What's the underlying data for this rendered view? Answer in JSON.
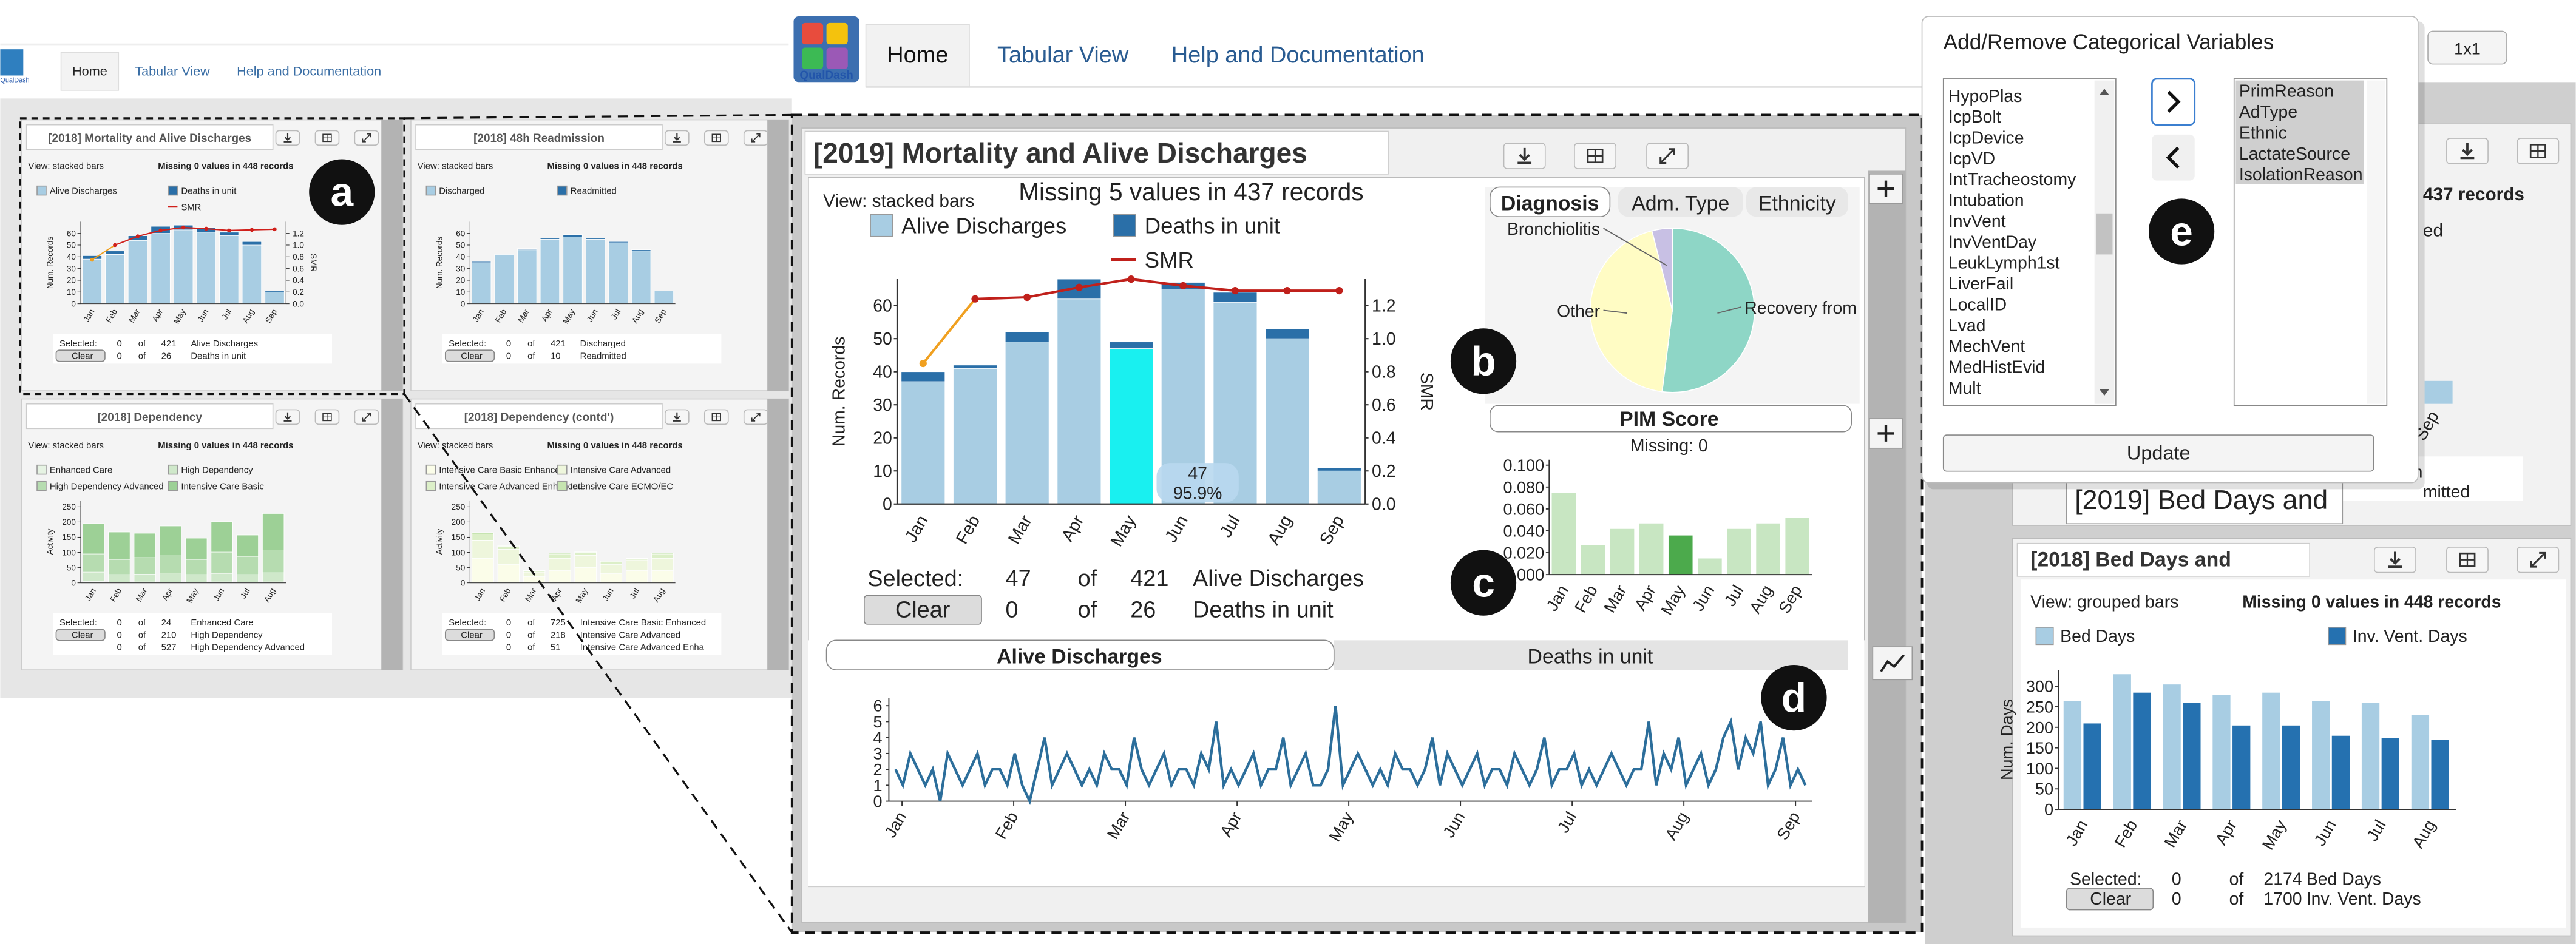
{
  "top_bar": {
    "logo": "QualDash",
    "tabs": [
      "Home",
      "Tabular View",
      "Help and Documentation"
    ]
  },
  "background_window": {
    "logo": "QualDash",
    "tabs": [
      "Home",
      "Tabular View",
      "Help and Documentation"
    ],
    "panels": [
      {
        "title": "[2018] Mortality and Alive Discharges",
        "view": "View: stacked bars",
        "missing": "Missing 0 values in 448 records",
        "chart": {
          "type": "bar",
          "mode": "stacked",
          "categories": [
            "Jan",
            "Feb",
            "Mar",
            "Apr",
            "May",
            "Jun",
            "Jul",
            "Aug",
            "Sep"
          ],
          "ylabel": "Num. Records",
          "y2label": "SMR",
          "ylim": [
            0,
            70
          ],
          "yticks": [
            0,
            10,
            20,
            30,
            40,
            50,
            60
          ],
          "y2lim": [
            0,
            1.4
          ],
          "y2ticks": [
            {
              "value": 0,
              "label": "0.0"
            },
            {
              "value": 0.2,
              "label": "0.2"
            },
            {
              "value": 0.4,
              "label": "0.4"
            },
            {
              "value": 0.6,
              "label": "0.6"
            },
            {
              "value": 0.8,
              "label": "0.8"
            },
            {
              "value": 1,
              "label": "1.0"
            },
            {
              "value": 1.2,
              "label": "1.2"
            }
          ],
          "series": [
            {
              "name": "Alive Discharges",
              "color": "#a8cde3",
              "values": [
                38,
                42,
                54,
                60,
                63,
                61,
                58,
                50,
                10
              ]
            },
            {
              "name": "Deaths in unit",
              "color": "#2a6fa8",
              "values": [
                3,
                3,
                4,
                6,
                4,
                4,
                3,
                3,
                1
              ]
            },
            {
              "name": "SMR",
              "color": "#d0201b",
              "start_color": "#f0a020",
              "axis": "y2",
              "values": [
                0.75,
                1.0,
                1.15,
                1.25,
                1.3,
                1.28,
                1.25,
                1.26,
                1.27
              ]
            }
          ]
        },
        "selection": {
          "selected_label": "Selected:",
          "clear": "Clear",
          "of": "of",
          "rows": [
            {
              "count": 0,
              "total": 421,
              "name": "Alive Discharges"
            },
            {
              "count": 0,
              "total": 26,
              "name": "Deaths in unit"
            }
          ]
        }
      },
      {
        "title": "[2018] 48h Readmission",
        "view": "View: stacked bars",
        "missing": "Missing 0 values in 448 records",
        "chart": {
          "type": "bar",
          "mode": "stacked",
          "categories": [
            "Jan",
            "Feb",
            "Mar",
            "Apr",
            "May",
            "Jun",
            "Jul",
            "Aug",
            "Sep"
          ],
          "ylabel": "Num. Records",
          "ylim": [
            0,
            70
          ],
          "yticks": [
            0,
            10,
            20,
            30,
            40,
            50,
            60
          ],
          "series": [
            {
              "name": "Discharged",
              "color": "#a8cde3",
              "values": [
                35,
                42,
                46,
                55,
                57,
                55,
                52,
                45,
                11
              ]
            },
            {
              "name": "Readmitted",
              "color": "#2a6fa8",
              "values": [
                1,
                0,
                1,
                1,
                2,
                1,
                1,
                1,
                0
              ]
            }
          ]
        },
        "selection": {
          "selected_label": "Selected:",
          "clear": "Clear",
          "of": "of",
          "rows": [
            {
              "count": 0,
              "total": 421,
              "name": "Discharged"
            },
            {
              "count": 0,
              "total": 10,
              "name": "Readmitted"
            }
          ]
        }
      },
      {
        "title": "[2018] Dependency",
        "view": "View: stacked bars",
        "missing": "Missing 0 values in 448 records",
        "chart": {
          "type": "bar",
          "mode": "stacked",
          "categories": [
            "Jan",
            "Feb",
            "Mar",
            "Apr",
            "May",
            "Jun",
            "Jul",
            "Aug"
          ],
          "ylabel": "Activity",
          "ylim": [
            0,
            270
          ],
          "yticks": [
            0,
            50,
            100,
            150,
            200,
            250
          ],
          "series": [
            {
              "name": "Enhanced Care",
              "color": "#e6f3e3",
              "values": [
                5,
                2,
                3,
                2,
                2,
                3,
                2,
                3
              ]
            },
            {
              "name": "High Dependency",
              "color": "#cfe8ca",
              "values": [
                30,
                25,
                25,
                30,
                25,
                28,
                25,
                30
              ]
            },
            {
              "name": "High Dependency Advanced",
              "color": "#b6dcb0",
              "values": [
                60,
                50,
                55,
                60,
                50,
                70,
                60,
                75
              ]
            },
            {
              "name": "Intensive Care Basic",
              "color": "#9dd096",
              "values": [
                100,
                90,
                80,
                95,
                70,
                100,
                70,
                120
              ]
            }
          ]
        },
        "selection": {
          "selected_label": "Selected:",
          "clear": "Clear",
          "of": "of",
          "rows": [
            {
              "count": 0,
              "total": 24,
              "name": "Enhanced Care"
            },
            {
              "count": 0,
              "total": 210,
              "name": "High Dependency"
            },
            {
              "count": 0,
              "total": 527,
              "name": "High Dependency Advanced"
            }
          ]
        }
      },
      {
        "title": "[2018] Dependency (contd')",
        "view": "View: stacked bars",
        "missing": "Missing 0 values in 448 records",
        "chart": {
          "type": "bar",
          "mode": "stacked",
          "categories": [
            "Jan",
            "Feb",
            "Mar",
            "Apr",
            "May",
            "Jun",
            "Jul",
            "Aug"
          ],
          "ylabel": "Activity",
          "ylim": [
            0,
            270
          ],
          "yticks": [
            0,
            50,
            100,
            150,
            200,
            250
          ],
          "series": [
            {
              "name": "Intensive Care Basic Enhance",
              "color": "#fbfde9",
              "values": [
                80,
                60,
                20,
                40,
                50,
                30,
                40,
                40
              ]
            },
            {
              "name": "Intensive Care Advanced",
              "color": "#eef6dc",
              "values": [
                60,
                50,
                15,
                40,
                40,
                30,
                35,
                40
              ]
            },
            {
              "name": "Intensive Care Advanced Enhanced",
              "color": "#dcefc8",
              "values": [
                20,
                10,
                5,
                15,
                10,
                10,
                5,
                15
              ]
            },
            {
              "name": "Intensive Care ECMO/EC",
              "color": "#c6e4b0",
              "values": [
                5,
                2,
                1,
                3,
                2,
                2,
                1,
                3
              ]
            }
          ]
        },
        "selection": {
          "selected_label": "Selected:",
          "clear": "Clear",
          "of": "of",
          "rows": [
            {
              "count": 0,
              "total": 725,
              "name": "Intensive Care Basic Enhanced"
            },
            {
              "count": 0,
              "total": 218,
              "name": "Intensive Care Advanced"
            },
            {
              "count": 0,
              "total": 51,
              "name": "Intensive Care Advanced Enha"
            }
          ]
        }
      }
    ]
  },
  "main_panel": {
    "title": "[2019] Mortality and Alive Discharges",
    "view": "View: stacked bars",
    "missing": "Missing 5 values in 437 records",
    "chart": {
      "type": "bar",
      "mode": "stacked",
      "categories": [
        "Jan",
        "Feb",
        "Mar",
        "Apr",
        "May",
        "Jun",
        "Jul",
        "Aug",
        "Sep"
      ],
      "ylabel": "Num. Records",
      "y2label": "SMR",
      "ylim": [
        0,
        68
      ],
      "yticks": [
        0,
        10,
        20,
        30,
        40,
        50,
        60
      ],
      "y2lim": [
        0,
        1.36
      ],
      "y2ticks": [
        {
          "value": 0,
          "label": "0.0"
        },
        {
          "value": 0.2,
          "label": "0.2"
        },
        {
          "value": 0.4,
          "label": "0.4"
        },
        {
          "value": 0.6,
          "label": "0.6"
        },
        {
          "value": 0.8,
          "label": "0.8"
        },
        {
          "value": 1,
          "label": "1.0"
        },
        {
          "value": 1.2,
          "label": "1.2"
        }
      ],
      "highlight_category": "May",
      "highlight_color": "#19f0f0",
      "series": [
        {
          "name": "Alive Discharges",
          "color": "#a8cde3",
          "values": [
            37,
            41,
            49,
            62,
            47,
            65,
            61,
            50,
            10
          ]
        },
        {
          "name": "Deaths in unit",
          "color": "#2a6fa8",
          "values": [
            3,
            1,
            3,
            6,
            2,
            2,
            3,
            3,
            1
          ]
        },
        {
          "name": "SMR",
          "color": "#c0201b",
          "start_color": "#f0a020",
          "axis": "y2",
          "values": [
            0.85,
            1.24,
            1.25,
            1.31,
            1.36,
            1.32,
            1.29,
            1.29,
            1.29
          ]
        }
      ],
      "tooltip": [
        "47",
        "95.9%"
      ]
    },
    "selection": {
      "selected_label": "Selected:",
      "clear": "Clear",
      "of": "of",
      "rows": [
        {
          "count": 47,
          "total": 421,
          "name": "Alive Discharges"
        },
        {
          "count": 0,
          "total": 26,
          "name": "Deaths in unit"
        }
      ]
    },
    "pie": {
      "type": "pie",
      "tabs": [
        "Diagnosis",
        "Adm. Type",
        "Ethnicity"
      ],
      "categories": [
        "Recovery from",
        "Other",
        "Bronchiolitis"
      ],
      "values": [
        52,
        44,
        4
      ],
      "colors": [
        "#8ed6c6",
        "#fffcc4",
        "#c8c0e4"
      ]
    },
    "pim": {
      "type": "bar",
      "title": "PIM Score",
      "missing": "Missing: 0",
      "mode": "stacked",
      "categories": [
        "Jan",
        "Feb",
        "Mar",
        "Apr",
        "May",
        "Jun",
        "Jul",
        "Aug",
        "Sep"
      ],
      "ylim": [
        0,
        0.105
      ],
      "yticks": [
        {
          "value": 0,
          "label": "0.000"
        },
        {
          "value": 0.02,
          "label": "0.020"
        },
        {
          "value": 0.04,
          "label": "0.040"
        },
        {
          "value": 0.06,
          "label": "0.060"
        },
        {
          "value": 0.08,
          "label": "0.080"
        },
        {
          "value": 0.1,
          "label": "0.100"
        }
      ],
      "highlight_category": "May",
      "highlight_color": "#4caa4c",
      "series": [
        {
          "name": "PIM Score",
          "color": "#c8e6c2",
          "values": [
            0.075,
            0.027,
            0.042,
            0.047,
            0.036,
            0.015,
            0.042,
            0.047,
            0.052
          ]
        }
      ]
    },
    "timeline": {
      "type": "line",
      "tabs": [
        "Alive Discharges",
        "Deaths in unit"
      ],
      "categories": [
        "Jan",
        "Feb",
        "Mar",
        "Apr",
        "May",
        "Jun",
        "Jul",
        "Aug",
        "Sep"
      ],
      "ylim": [
        0,
        6.5
      ],
      "yticks": [
        0,
        1,
        2,
        3,
        4,
        5,
        6
      ],
      "color": "#2c6e9b",
      "values": [
        2,
        1,
        3,
        2,
        1,
        2,
        0,
        3,
        2,
        1,
        2,
        3,
        1,
        2,
        2,
        1,
        3,
        1,
        0,
        2,
        4,
        1,
        2,
        3,
        2,
        1,
        2,
        1,
        3,
        2,
        2,
        1,
        4,
        2,
        1,
        2,
        3,
        1,
        2,
        2,
        1,
        3,
        2,
        5,
        1,
        2,
        1,
        2,
        3,
        1,
        2,
        2,
        4,
        1,
        2,
        3,
        1,
        1,
        2,
        6,
        1,
        2,
        3,
        2,
        1,
        2,
        1,
        3,
        2,
        2,
        1,
        2,
        4,
        1,
        3,
        2,
        1,
        2,
        3,
        1,
        2,
        2,
        1,
        3,
        2,
        1,
        2,
        4,
        1,
        2,
        2,
        3,
        1,
        2,
        1,
        2,
        3,
        2,
        1,
        2,
        2,
        5,
        1,
        3,
        2,
        4,
        1,
        2,
        3,
        1,
        2,
        4,
        5,
        2,
        4,
        3,
        5,
        1,
        2,
        4,
        1,
        2,
        1
      ]
    }
  },
  "popup": {
    "title": "Add/Remove Categorical Variables",
    "available": [
      "HypoPlas",
      "IcpBolt",
      "IcpDevice",
      "IcpVD",
      "IntTracheostomy",
      "Intubation",
      "InvVent",
      "InvVentDay",
      "LeukLymph1st",
      "LiverFail",
      "LocalID",
      "Lvad",
      "MechVent",
      "MedHistEvid",
      "Mult"
    ],
    "selected": [
      "PrimReason",
      "AdType",
      "Ethnic",
      "LactateSource",
      "IsolationReason"
    ],
    "update": "Update"
  },
  "behind_popup": {
    "layout_button": "1x1",
    "records": "437 records",
    "fragments": [
      "ed",
      "n",
      "mitted",
      "Sep"
    ],
    "tooltip": "[2019] Bed Days and"
  },
  "bed_days_panel": {
    "title": "[2018] Bed Days and",
    "view": "View: grouped bars",
    "missing": "Missing 0 values in 448 records",
    "chart": {
      "type": "bar",
      "mode": "grouped",
      "categories": [
        "Jan",
        "Feb",
        "Mar",
        "Apr",
        "May",
        "Jun",
        "Jul",
        "Aug"
      ],
      "ylabel": "Num. Days",
      "ylim": [
        0,
        340
      ],
      "yticks": [
        0,
        50,
        100,
        150,
        200,
        250,
        300
      ],
      "series": [
        {
          "name": "Bed Days",
          "color": "#a8cde3",
          "values": [
            265,
            330,
            305,
            280,
            285,
            265,
            260,
            230
          ]
        },
        {
          "name": "Inv. Vent. Days",
          "color": "#2571b0",
          "values": [
            210,
            285,
            260,
            205,
            205,
            180,
            175,
            170
          ]
        }
      ]
    },
    "selection": {
      "selected_label": "Selected:",
      "clear": "Clear",
      "of": "of",
      "rows": [
        {
          "count": 0,
          "total": 2174,
          "name": "Bed Days"
        },
        {
          "count": 0,
          "total": 1700,
          "name": "Inv. Vent. Days"
        }
      ]
    }
  },
  "badges": [
    "a",
    "b",
    "c",
    "d",
    "e"
  ]
}
